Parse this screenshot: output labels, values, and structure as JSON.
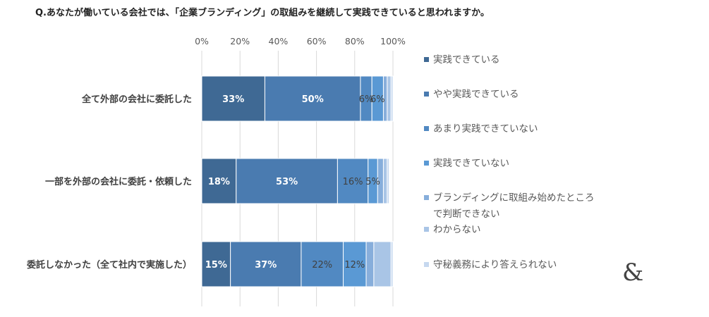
{
  "chart_data": {
    "type": "bar",
    "orientation": "horizontal",
    "stacked": true,
    "title": "Q.あなたが働いている会社では、「企業ブランディング」の取組みを継続して実践できていると思われますか。",
    "xlim": [
      0,
      100
    ],
    "x_ticks": [
      "0%",
      "20%",
      "40%",
      "60%",
      "80%",
      "100%"
    ],
    "grid": true,
    "legend_position": "right",
    "categories": [
      "全て外部の会社に委託した",
      "一部を外部の会社に委託・依頼した",
      "委託しなかった（全て社内で実施した）"
    ],
    "series": [
      {
        "name": "実践できている",
        "color": "#3f6994",
        "values": [
          33,
          18,
          15
        ],
        "labels": [
          "33%",
          "18%",
          "15%"
        ],
        "label_color": "#ffffff",
        "label_bold": true
      },
      {
        "name": "やや実践できている",
        "color": "#4a7bb0",
        "values": [
          50,
          53,
          37
        ],
        "labels": [
          "50%",
          "53%",
          "37%"
        ],
        "label_color": "#ffffff",
        "label_bold": true
      },
      {
        "name": "あまり実践できていない",
        "color": "#5189c2",
        "values": [
          6,
          16,
          22
        ],
        "labels": [
          "6%",
          "16%",
          "22%"
        ],
        "label_color": "#404040",
        "label_bold": false
      },
      {
        "name": "実践できていない",
        "color": "#5a99d4",
        "values": [
          6,
          5,
          12
        ],
        "labels": [
          "6%",
          "5%",
          "12%"
        ],
        "label_color": "#404040",
        "label_bold": false
      },
      {
        "name": "ブランディングに取組み始めたところで判断できない",
        "color": "#87aedb",
        "values": [
          2,
          3,
          4
        ],
        "labels": [
          "",
          "",
          ""
        ],
        "label_color": "#404040",
        "label_bold": false
      },
      {
        "name": "わからない",
        "color": "#a9c5e6",
        "values": [
          2,
          2,
          9
        ],
        "labels": [
          "",
          "",
          ""
        ],
        "label_color": "#404040",
        "label_bold": false
      },
      {
        "name": "守秘義務により答えられない",
        "color": "#c6d8ef",
        "values": [
          1,
          1,
          1
        ],
        "labels": [
          "",
          "",
          ""
        ],
        "label_color": "#404040",
        "label_bold": false
      }
    ]
  },
  "legend_lines": [
    [
      "実践できている"
    ],
    [
      "やや実践できている"
    ],
    [
      "あまり実践できていない"
    ],
    [
      "実践できていない"
    ],
    [
      "ブランディングに取組み始めたところ",
      "で判断できない"
    ],
    [
      "わからない"
    ],
    [
      "守秘義務により答えられない"
    ]
  ],
  "brand_mark": "&"
}
